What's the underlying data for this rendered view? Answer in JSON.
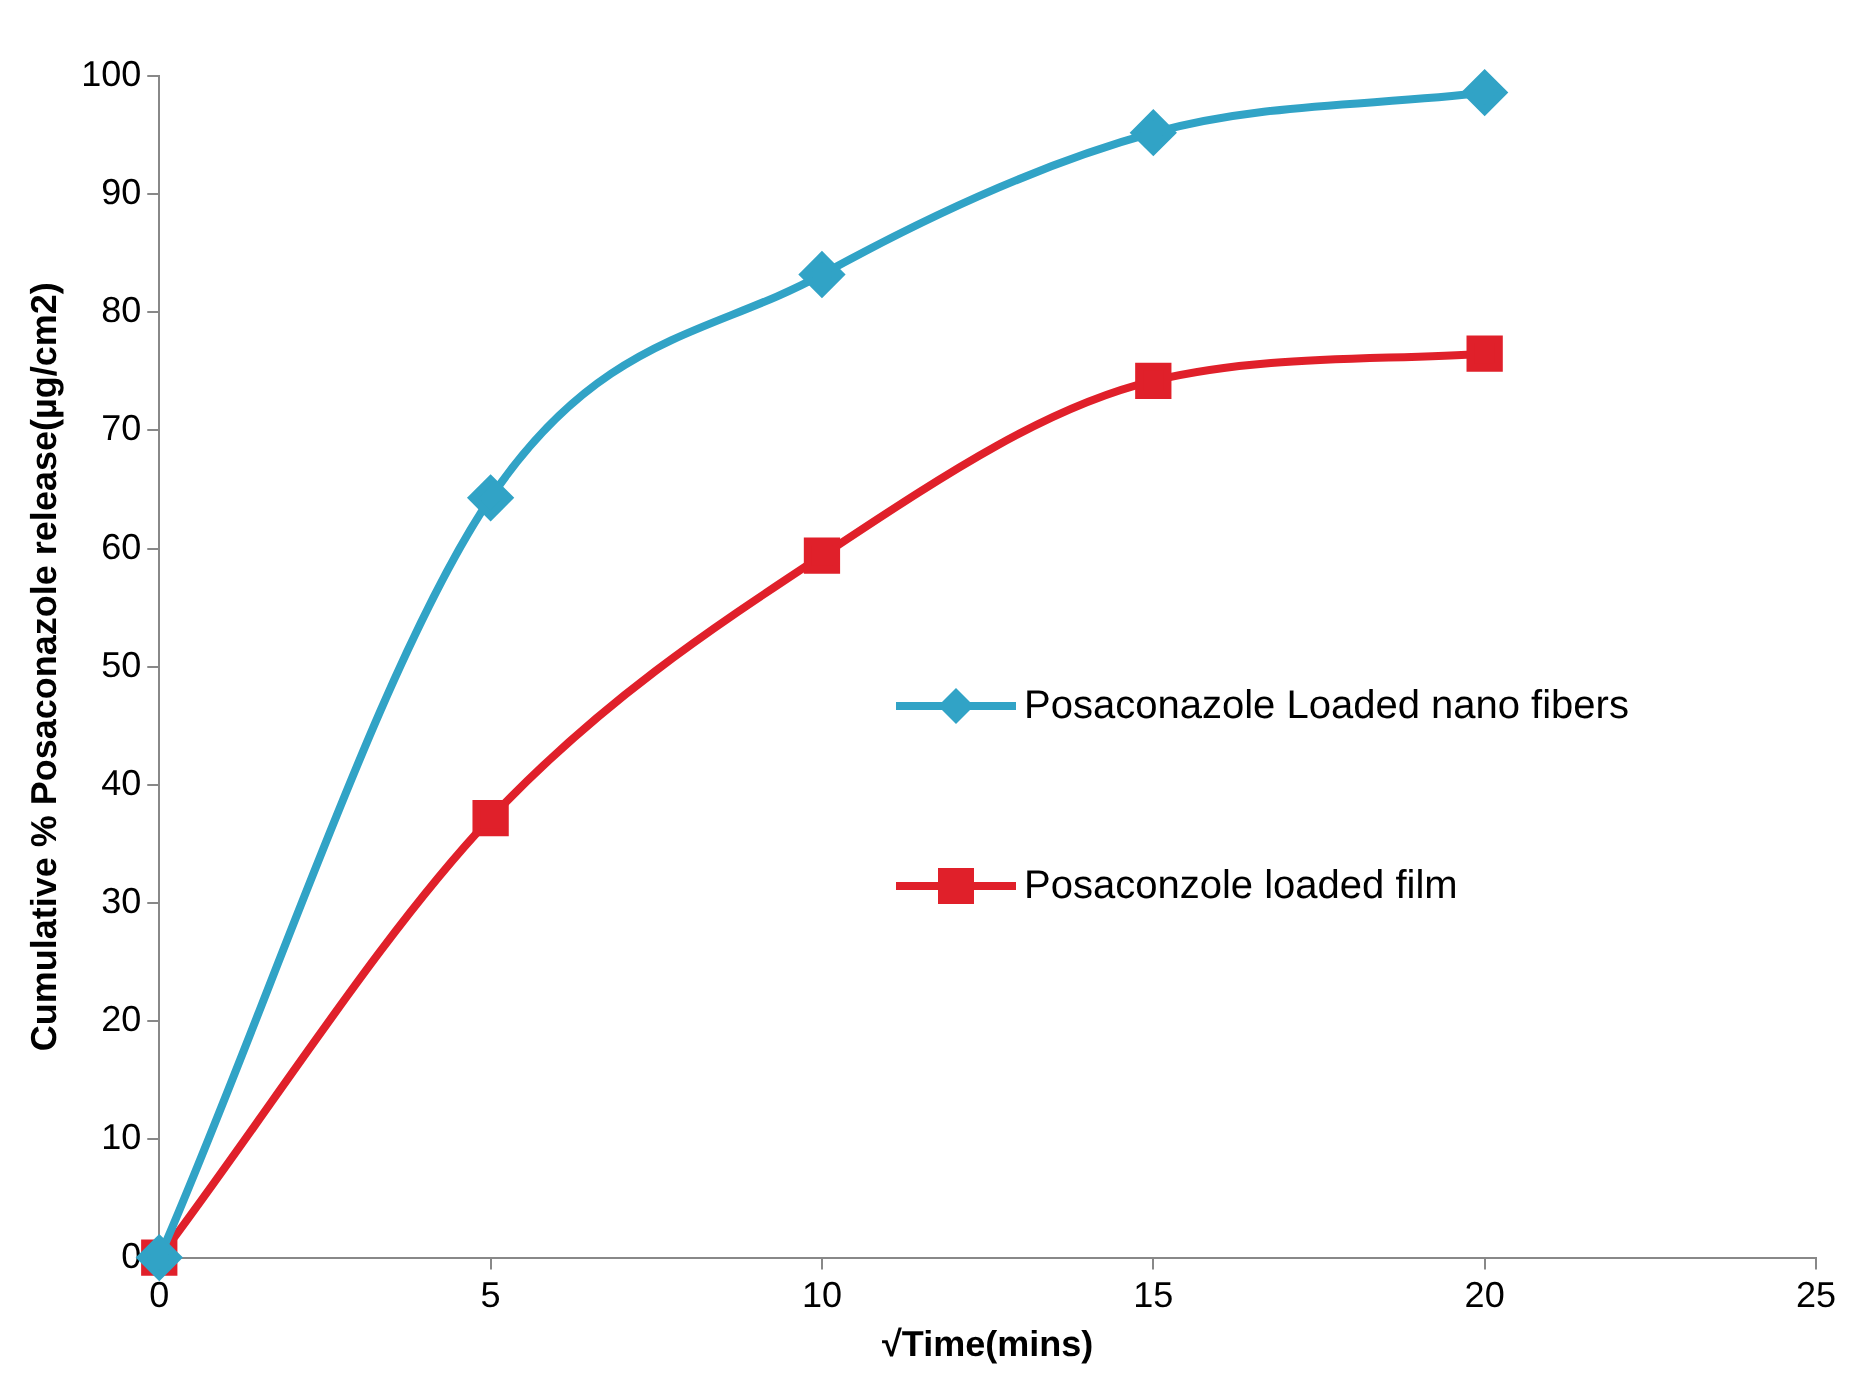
{
  "chart_data": {
    "type": "line",
    "xlabel": "√Time(mins)",
    "ylabel": "Cumulative % Posaconazole release(µg/cm2)",
    "x": [
      0,
      5,
      10,
      15,
      20
    ],
    "series": [
      {
        "name": "Posaconazole Loaded nano fibers",
        "color": "#31a3c6",
        "marker": "diamond",
        "values": [
          0,
          64.3,
          83.2,
          95.2,
          98.6
        ]
      },
      {
        "name": "Posaconzole loaded film",
        "color": "#e0202a",
        "marker": "square",
        "values": [
          0,
          37.2,
          59.4,
          74.2,
          76.5
        ]
      }
    ],
    "xlim": [
      0,
      25
    ],
    "xticks": [
      0,
      5,
      10,
      15,
      20,
      25
    ],
    "ylim": [
      0,
      100
    ],
    "yticks": [
      0,
      10,
      20,
      30,
      40,
      50,
      60,
      70,
      80,
      90,
      100
    ],
    "grid": false,
    "legend": "right"
  }
}
